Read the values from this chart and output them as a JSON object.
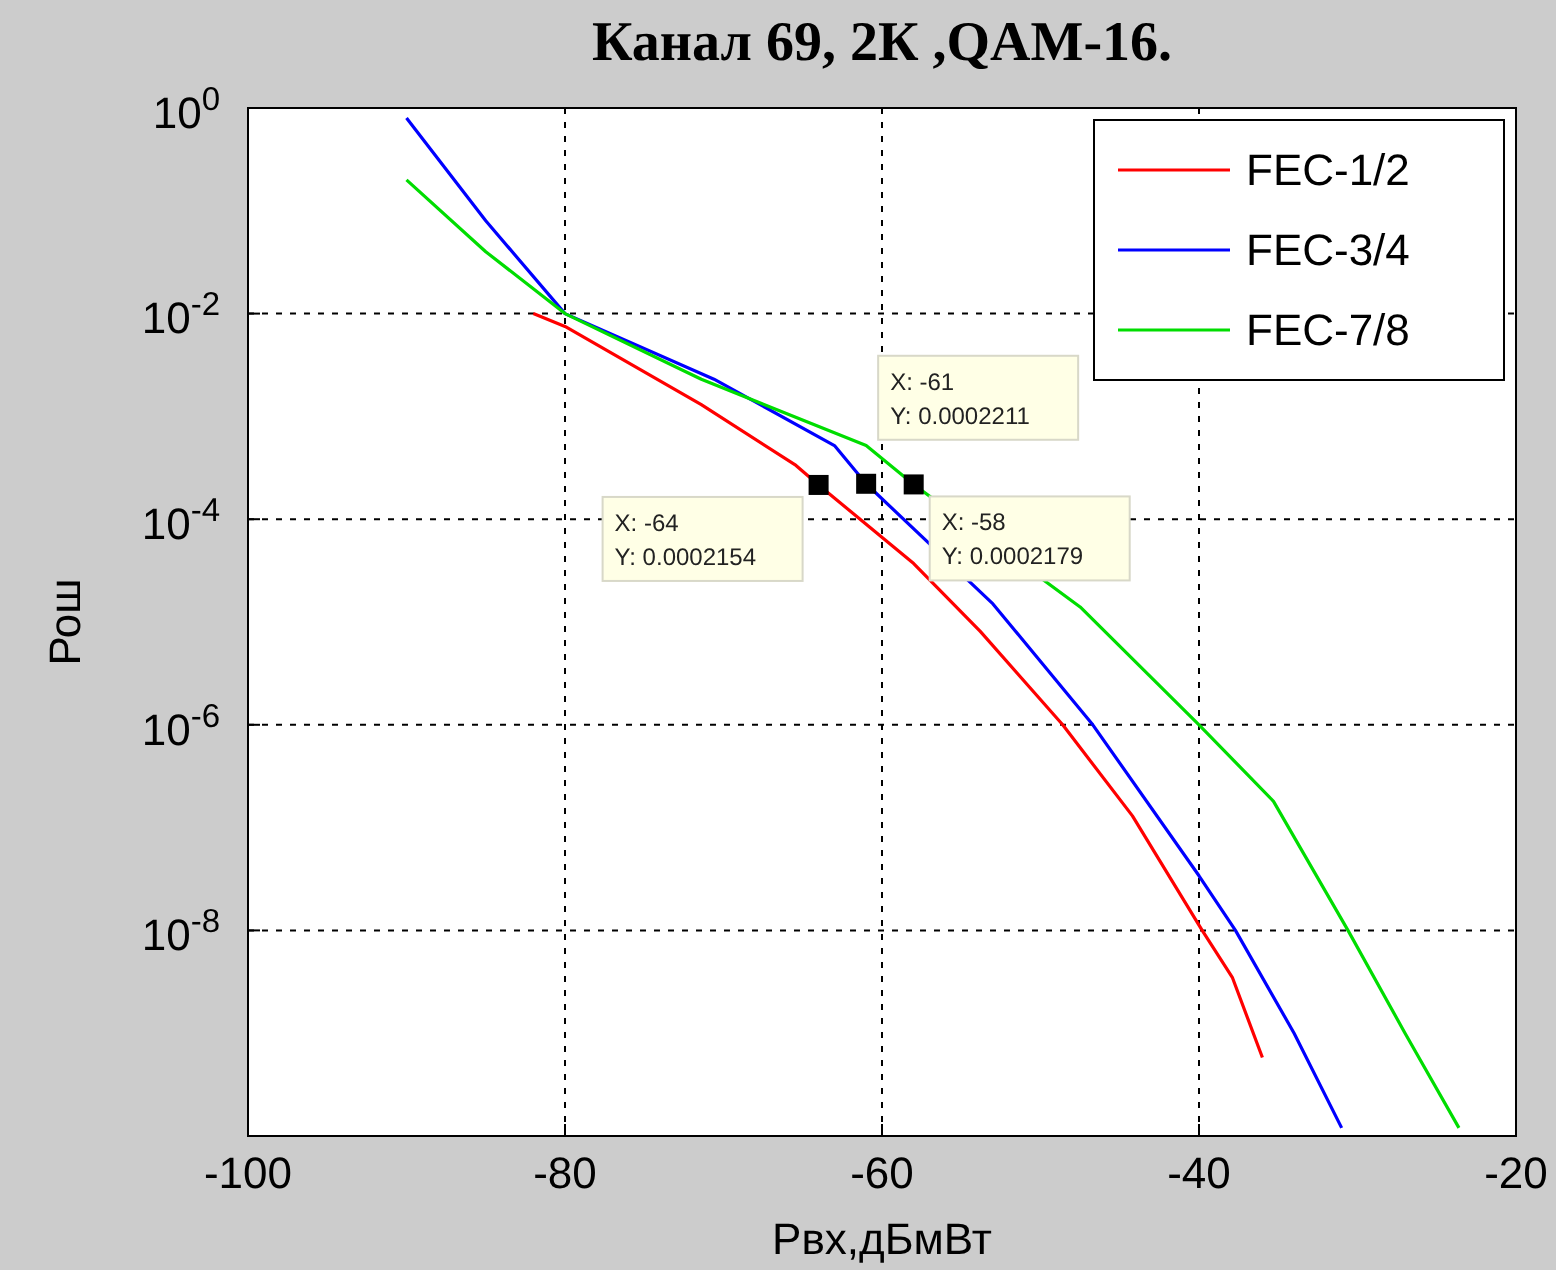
{
  "chart_data": {
    "type": "line",
    "title": "Канал 69, 2К ,QAM-16.",
    "xlabel": "Рвх,дБмВт",
    "ylabel": "Рош",
    "xlim": [
      -100,
      -20
    ],
    "xticks": [
      -100,
      -80,
      -60,
      -40,
      -20
    ],
    "ylim": [
      1e-10,
      1
    ],
    "yticks": [
      {
        "value": 1,
        "label": "10$^{0}$"
      },
      {
        "value": 0.01,
        "label": "10$^{-2}$"
      },
      {
        "value": 0.0001,
        "label": "10$^{-4}$"
      },
      {
        "value": 1e-06,
        "label": "10$^{-6}$"
      },
      {
        "value": 1e-08,
        "label": "10$^{-8}$"
      },
      {
        "value": 1e-10,
        "label": null
      }
    ],
    "log": "y",
    "grid": true,
    "legend": "top right",
    "line_style": "solid",
    "marker": "none",
    "series": [
      {
        "name": "FEC-1/2",
        "color": "#ff0000",
        "x": [
          -82,
          -80,
          -71.4,
          -65.5,
          -64,
          -58,
          -53.8,
          -48.6,
          -44.2,
          -39.8,
          -37.9,
          -36
        ],
        "values": [
          0.01,
          0.0075,
          0.0013,
          0.00034,
          0.0002154,
          3.7e-05,
          8.1e-06,
          1e-06,
          1.3e-07,
          1e-08,
          3.5e-09,
          5.8e-10
        ]
      },
      {
        "name": "FEC-3/4",
        "color": "#0000ff",
        "x": [
          -90,
          -85,
          -80,
          -70.6,
          -63,
          -61,
          -53,
          -46.7,
          -40,
          -37.7,
          -34,
          -31
        ],
        "values": [
          0.8,
          0.08,
          0.01,
          0.0023,
          0.00052,
          0.0002211,
          1.5e-05,
          1e-06,
          3.4e-08,
          1e-08,
          1e-09,
          1.2e-10
        ]
      },
      {
        "name": "FEC-7/8",
        "color": "#00dd00",
        "x": [
          -90,
          -85,
          -80,
          -71.4,
          -61,
          -58,
          -47.5,
          -40,
          -35.3,
          -30.6,
          -27,
          -23.6
        ],
        "values": [
          0.2,
          0.04,
          0.01,
          0.0023,
          0.00052,
          0.0002179,
          1.4e-05,
          1e-06,
          1.8e-07,
          1e-08,
          1e-09,
          1.2e-10
        ]
      }
    ],
    "annotations": [
      {
        "text": "X: -64\nY: 0.0002154",
        "x": -64,
        "y": 0.0002154
      },
      {
        "text": "X: -61\nY: 0.0002211",
        "x": -61,
        "y": 0.0002211
      },
      {
        "text": "X: -58\nY: 0.0002179",
        "x": -58,
        "y": 0.0002179
      }
    ]
  }
}
